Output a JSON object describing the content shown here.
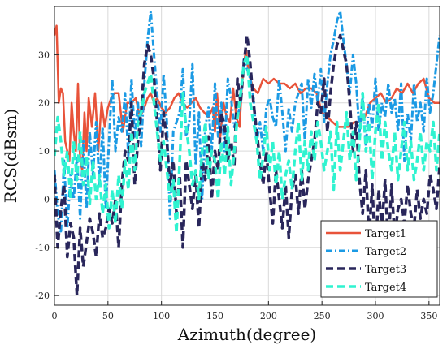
{
  "chart_data": {
    "type": "line",
    "title": "",
    "xlabel": "Azimuth(degree)",
    "ylabel": "RCS(dBsm)",
    "xlim": [
      0,
      360
    ],
    "ylim": [
      -22,
      40
    ],
    "xticks": [
      0,
      50,
      100,
      150,
      200,
      250,
      300,
      350
    ],
    "yticks": [
      -20,
      -10,
      0,
      10,
      20,
      30
    ],
    "grid": true,
    "legend_position": "bottom-right",
    "series": [
      {
        "name": "Target1",
        "color": "#e8533a",
        "style": "solid",
        "x": [
          0,
          2,
          4,
          6,
          8,
          10,
          12,
          14,
          16,
          18,
          20,
          22,
          24,
          26,
          28,
          30,
          32,
          35,
          38,
          41,
          44,
          47,
          50,
          53,
          56,
          60,
          64,
          68,
          72,
          76,
          80,
          84,
          87,
          90,
          93,
          96,
          100,
          104,
          108,
          112,
          116,
          120,
          124,
          128,
          132,
          136,
          140,
          144,
          148,
          150,
          152,
          155,
          158,
          161,
          164,
          167,
          170,
          173,
          175,
          177,
          179,
          181,
          183,
          186,
          190,
          195,
          200,
          205,
          210,
          215,
          220,
          225,
          230,
          235,
          240,
          245,
          250,
          255,
          260,
          265,
          270,
          275,
          280,
          285,
          290,
          295,
          300,
          305,
          310,
          315,
          320,
          325,
          330,
          335,
          340,
          345,
          350,
          355,
          360
        ],
        "y": [
          34,
          36,
          20,
          23,
          22,
          12,
          10,
          8,
          20,
          14,
          10,
          24,
          8,
          6,
          18,
          10,
          21,
          15,
          22,
          10,
          20,
          15,
          19,
          21,
          22,
          22,
          14,
          20,
          20,
          21,
          17,
          19,
          21,
          22,
          20,
          21,
          19,
          18,
          19,
          21,
          22,
          20,
          19,
          20,
          21,
          19,
          18,
          17,
          19,
          14,
          22,
          13,
          20,
          17,
          16,
          23,
          17,
          15,
          23,
          28,
          31,
          27,
          25,
          23,
          22,
          25,
          24,
          25,
          24,
          24,
          23,
          24,
          22,
          23,
          23,
          22,
          18,
          17,
          16,
          15,
          15,
          15,
          16,
          16,
          17,
          20,
          21,
          22,
          20,
          21,
          23,
          22,
          24,
          22,
          24,
          25,
          21,
          20,
          20
        ]
      },
      {
        "name": "Target2",
        "color": "#1b9ae4",
        "style": "dashdot",
        "x": [
          0,
          3,
          6,
          9,
          12,
          15,
          18,
          21,
          24,
          27,
          30,
          33,
          36,
          39,
          42,
          45,
          48,
          51,
          54,
          57,
          60,
          63,
          66,
          69,
          72,
          75,
          78,
          81,
          84,
          87,
          90,
          93,
          96,
          99,
          102,
          105,
          108,
          111,
          114,
          117,
          120,
          123,
          126,
          129,
          132,
          135,
          138,
          141,
          144,
          147,
          150,
          153,
          156,
          159,
          162,
          165,
          168,
          171,
          174,
          177,
          180,
          183,
          186,
          189,
          192,
          195,
          198,
          201,
          204,
          207,
          210,
          213,
          216,
          219,
          222,
          225,
          228,
          231,
          234,
          237,
          240,
          243,
          246,
          249,
          252,
          255,
          258,
          261,
          264,
          267,
          270,
          273,
          276,
          279,
          282,
          285,
          288,
          291,
          294,
          297,
          300,
          303,
          306,
          309,
          312,
          315,
          318,
          321,
          324,
          327,
          330,
          333,
          336,
          339,
          342,
          345,
          348,
          351,
          354,
          357,
          360
        ],
        "y": [
          6,
          -3,
          -7,
          8,
          -6,
          5,
          0,
          9,
          -4,
          12,
          -2,
          14,
          5,
          16,
          3,
          15,
          -2,
          12,
          25,
          10,
          17,
          14,
          22,
          9,
          25,
          13,
          20,
          11,
          24,
          33,
          39,
          30,
          22,
          14,
          26,
          16,
          -4,
          14,
          16,
          18,
          27,
          13,
          16,
          28,
          7,
          18,
          0,
          15,
          19,
          10,
          24,
          13,
          20,
          10,
          25,
          21,
          15,
          17,
          20,
          29,
          27,
          25,
          21,
          12,
          16,
          10,
          19,
          21,
          17,
          15,
          25,
          18,
          10,
          19,
          14,
          20,
          22,
          24,
          12,
          25,
          19,
          26,
          20,
          27,
          16,
          24,
          30,
          33,
          37,
          39,
          33,
          28,
          22,
          30,
          24,
          14,
          21,
          11,
          20,
          15,
          25,
          14,
          20,
          17,
          24,
          18,
          21,
          14,
          24,
          8,
          18,
          12,
          24,
          16,
          20,
          14,
          25,
          18,
          22,
          28,
          34
        ]
      },
      {
        "name": "Target3",
        "color": "#29265b",
        "style": "dashed",
        "x": [
          0,
          3,
          6,
          9,
          12,
          15,
          18,
          21,
          24,
          27,
          30,
          33,
          36,
          39,
          42,
          45,
          48,
          51,
          54,
          57,
          60,
          63,
          66,
          69,
          72,
          75,
          78,
          81,
          84,
          87,
          90,
          93,
          96,
          99,
          102,
          105,
          108,
          111,
          114,
          117,
          120,
          123,
          126,
          129,
          132,
          135,
          138,
          141,
          144,
          147,
          150,
          153,
          156,
          159,
          162,
          165,
          168,
          171,
          174,
          177,
          180,
          183,
          186,
          189,
          192,
          195,
          198,
          201,
          204,
          207,
          210,
          213,
          216,
          219,
          222,
          225,
          228,
          231,
          234,
          237,
          240,
          243,
          246,
          249,
          252,
          255,
          258,
          261,
          264,
          267,
          270,
          273,
          276,
          279,
          282,
          285,
          288,
          291,
          294,
          297,
          300,
          303,
          306,
          309,
          312,
          315,
          318,
          321,
          324,
          327,
          330,
          333,
          336,
          339,
          342,
          345,
          348,
          351,
          354,
          357,
          360
        ],
        "y": [
          5,
          -10,
          -2,
          3,
          -12,
          -5,
          -8,
          -20,
          -6,
          -14,
          -9,
          -4,
          -7,
          -12,
          -3,
          -8,
          -6,
          -2,
          -5,
          0,
          -10,
          3,
          10,
          8,
          20,
          3,
          12,
          18,
          28,
          32,
          30,
          25,
          16,
          6,
          18,
          12,
          3,
          8,
          -3,
          5,
          -10,
          8,
          3,
          -2,
          5,
          -6,
          8,
          4,
          13,
          0,
          10,
          6,
          18,
          15,
          8,
          12,
          7,
          25,
          20,
          28,
          34,
          28,
          20,
          14,
          8,
          3,
          10,
          2,
          -5,
          6,
          0,
          -6,
          3,
          -8,
          2,
          5,
          -3,
          6,
          -2,
          4,
          8,
          12,
          20,
          18,
          25,
          14,
          22,
          28,
          32,
          34,
          31,
          28,
          20,
          10,
          16,
          4,
          -3,
          6,
          -8,
          3,
          -12,
          2,
          -6,
          4,
          -10,
          3,
          -8,
          -2,
          0,
          -5,
          3,
          -3,
          -6,
          2,
          -4,
          0,
          -3,
          5,
          2,
          -2,
          7
        ]
      },
      {
        "name": "Target4",
        "color": "#2ff3d0",
        "style": "dashed",
        "x": [
          0,
          3,
          6,
          9,
          12,
          15,
          18,
          21,
          24,
          27,
          30,
          33,
          36,
          39,
          42,
          45,
          48,
          51,
          54,
          57,
          60,
          63,
          66,
          69,
          72,
          75,
          78,
          81,
          84,
          87,
          90,
          93,
          96,
          99,
          102,
          105,
          108,
          111,
          114,
          117,
          120,
          123,
          126,
          129,
          132,
          135,
          138,
          141,
          144,
          147,
          150,
          153,
          156,
          159,
          162,
          165,
          168,
          171,
          174,
          177,
          180,
          183,
          186,
          189,
          192,
          195,
          198,
          201,
          204,
          207,
          210,
          213,
          216,
          219,
          222,
          225,
          228,
          231,
          234,
          237,
          240,
          243,
          246,
          249,
          252,
          255,
          258,
          261,
          264,
          267,
          270,
          273,
          276,
          279,
          282,
          285,
          288,
          291,
          294,
          297,
          300,
          303,
          306,
          309,
          312,
          315,
          318,
          321,
          324,
          327,
          330,
          333,
          336,
          339,
          342,
          345,
          348,
          351,
          354,
          357,
          360
        ],
        "y": [
          9,
          17,
          12,
          5,
          10,
          0,
          12,
          4,
          14,
          3,
          9,
          -1,
          8,
          0,
          5,
          -3,
          3,
          -6,
          2,
          -5,
          5,
          -2,
          8,
          2,
          14,
          6,
          16,
          18,
          22,
          24,
          26,
          20,
          14,
          8,
          12,
          6,
          0,
          4,
          -7,
          8,
          22,
          15,
          10,
          3,
          6,
          0,
          10,
          16,
          4,
          10,
          8,
          0,
          12,
          5,
          15,
          3,
          10,
          17,
          22,
          28,
          30,
          20,
          16,
          12,
          4,
          9,
          15,
          6,
          12,
          3,
          10,
          0,
          5,
          8,
          2,
          10,
          16,
          4,
          12,
          6,
          14,
          8,
          16,
          12,
          6,
          10,
          14,
          2,
          16,
          6,
          12,
          18,
          8,
          14,
          4,
          12,
          22,
          10,
          16,
          4,
          14,
          20,
          8,
          16,
          10,
          6,
          14,
          4,
          10,
          16,
          6,
          12,
          4,
          8,
          14,
          6,
          12,
          10,
          16,
          6,
          14
        ]
      }
    ]
  }
}
